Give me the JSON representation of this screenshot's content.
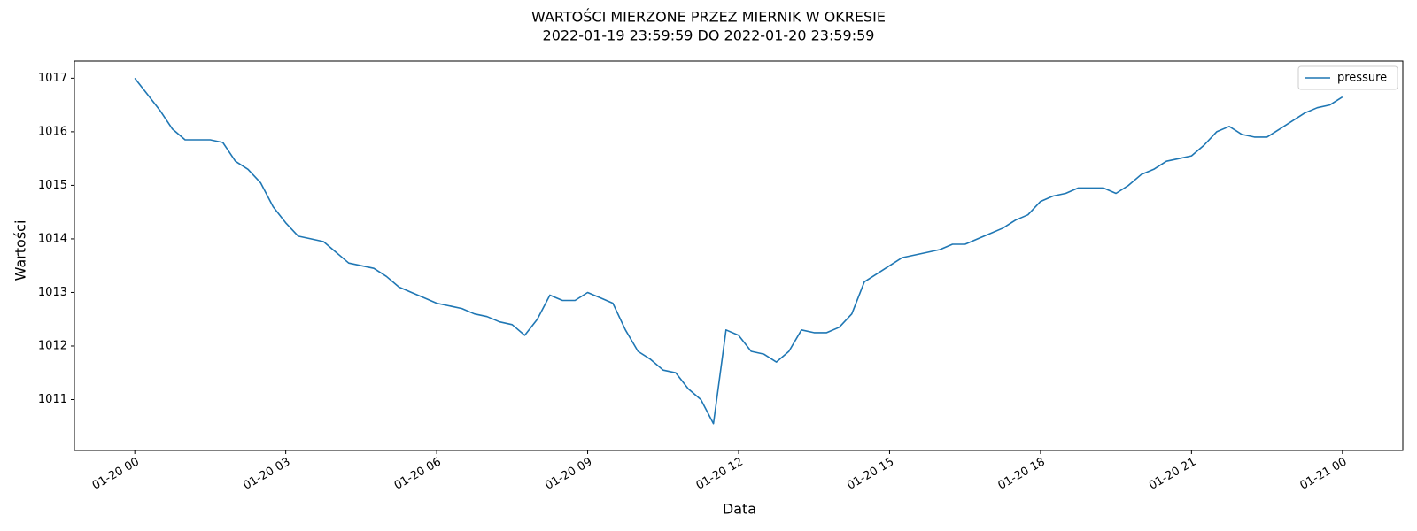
{
  "chart_data": {
    "type": "line",
    "title_lines": [
      "WARTOŚCI MIERZONE PRZEZ MIERNIK W OKRESIE",
      "2022-01-19 23:59:59 DO 2022-01-20 23:59:59"
    ],
    "x_label": "Data",
    "y_label": "Wartości",
    "x": [
      0,
      0.25,
      0.5,
      0.75,
      1,
      1.25,
      1.5,
      1.75,
      2,
      2.25,
      2.5,
      2.75,
      3,
      3.25,
      3.5,
      3.75,
      4,
      4.25,
      4.5,
      4.75,
      5,
      5.25,
      5.5,
      5.75,
      6,
      6.25,
      6.5,
      6.75,
      7,
      7.25,
      7.5,
      7.75,
      8,
      8.25,
      8.5,
      8.75,
      9,
      9.25,
      9.5,
      9.75,
      10,
      10.25,
      10.5,
      10.75,
      11,
      11.25,
      11.5,
      11.75,
      12,
      12.25,
      12.5,
      12.75,
      13,
      13.25,
      13.5,
      13.75,
      14,
      14.25,
      14.5,
      14.75,
      15,
      15.25,
      15.5,
      15.75,
      16,
      16.25,
      16.5,
      16.75,
      17,
      17.25,
      17.5,
      17.75,
      18,
      18.25,
      18.5,
      18.75,
      19,
      19.25,
      19.5,
      19.75,
      20,
      20.25,
      20.5,
      20.75,
      21,
      21.25,
      21.5,
      21.75,
      22,
      22.25,
      22.5,
      22.75,
      23,
      23.25,
      23.5,
      23.75,
      24
    ],
    "series": [
      {
        "name": "pressure",
        "color": "#1f77b4",
        "values": [
          1017.0,
          1016.7,
          1016.4,
          1016.05,
          1015.85,
          1015.85,
          1015.85,
          1015.8,
          1015.45,
          1015.3,
          1015.05,
          1014.6,
          1014.3,
          1014.05,
          1014.0,
          1013.95,
          1013.75,
          1013.55,
          1013.5,
          1013.45,
          1013.3,
          1013.1,
          1013.0,
          1012.9,
          1012.8,
          1012.75,
          1012.7,
          1012.6,
          1012.55,
          1012.45,
          1012.4,
          1012.2,
          1012.5,
          1012.95,
          1012.85,
          1012.85,
          1013.0,
          1012.9,
          1012.8,
          1012.3,
          1011.9,
          1011.75,
          1011.55,
          1011.5,
          1011.2,
          1011.0,
          1010.55,
          1012.3,
          1012.2,
          1011.9,
          1011.85,
          1011.7,
          1011.9,
          1012.3,
          1012.25,
          1012.25,
          1012.35,
          1012.6,
          1013.2,
          1013.35,
          1013.5,
          1013.65,
          1013.7,
          1013.75,
          1013.8,
          1013.9,
          1013.9,
          1014.0,
          1014.1,
          1014.2,
          1014.35,
          1014.45,
          1014.7,
          1014.8,
          1014.85,
          1014.95,
          1014.95,
          1014.95,
          1014.85,
          1015.0,
          1015.2,
          1015.3,
          1015.45,
          1015.5,
          1015.55,
          1015.75,
          1016.0,
          1016.1,
          1015.95,
          1015.9,
          1015.9,
          1016.05,
          1016.2,
          1016.35,
          1016.45,
          1016.5,
          1016.65
        ]
      }
    ],
    "xlim": [
      -1.2,
      25.2
    ],
    "xticks": [
      {
        "value": 0,
        "label": "01-20 00"
      },
      {
        "value": 3,
        "label": "01-20 03"
      },
      {
        "value": 6,
        "label": "01-20 06"
      },
      {
        "value": 9,
        "label": "01-20 09"
      },
      {
        "value": 12,
        "label": "01-20 12"
      },
      {
        "value": 15,
        "label": "01-20 15"
      },
      {
        "value": 18,
        "label": "01-20 18"
      },
      {
        "value": 21,
        "label": "01-20 21"
      },
      {
        "value": 24,
        "label": "01-21 00"
      }
    ],
    "ylim": [
      1010.05,
      1017.32
    ],
    "yticks": [
      1011,
      1012,
      1013,
      1014,
      1015,
      1016,
      1017
    ],
    "legend": "upper right",
    "grid": false
  }
}
